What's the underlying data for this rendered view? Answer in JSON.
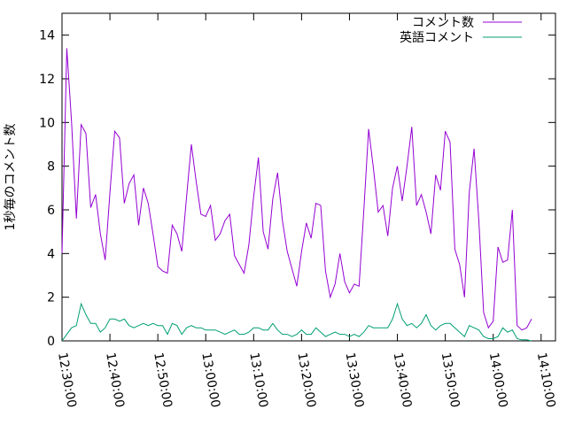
{
  "chart_data": {
    "type": "line",
    "ylabel": "1秒毎のコメント数",
    "x": [
      "12:30:00",
      "12:31:00",
      "12:32:00",
      "12:33:00",
      "12:34:00",
      "12:35:00",
      "12:36:00",
      "12:37:00",
      "12:38:00",
      "12:39:00",
      "12:40:00",
      "12:41:00",
      "12:42:00",
      "12:43:00",
      "12:44:00",
      "12:45:00",
      "12:46:00",
      "12:47:00",
      "12:48:00",
      "12:49:00",
      "12:50:00",
      "12:51:00",
      "12:52:00",
      "12:53:00",
      "12:54:00",
      "12:55:00",
      "12:56:00",
      "12:57:00",
      "12:58:00",
      "12:59:00",
      "13:00:00",
      "13:01:00",
      "13:02:00",
      "13:03:00",
      "13:04:00",
      "13:05:00",
      "13:06:00",
      "13:07:00",
      "13:08:00",
      "13:09:00",
      "13:10:00",
      "13:11:00",
      "13:12:00",
      "13:13:00",
      "13:14:00",
      "13:15:00",
      "13:16:00",
      "13:17:00",
      "13:18:00",
      "13:19:00",
      "13:20:00",
      "13:21:00",
      "13:22:00",
      "13:23:00",
      "13:24:00",
      "13:25:00",
      "13:26:00",
      "13:27:00",
      "13:28:00",
      "13:29:00",
      "13:30:00",
      "13:31:00",
      "13:32:00",
      "13:33:00",
      "13:34:00",
      "13:35:00",
      "13:36:00",
      "13:37:00",
      "13:38:00",
      "13:39:00",
      "13:40:00",
      "13:41:00",
      "13:42:00",
      "13:43:00",
      "13:44:00",
      "13:45:00",
      "13:46:00",
      "13:47:00",
      "13:48:00",
      "13:49:00",
      "13:50:00",
      "13:51:00",
      "13:52:00",
      "13:53:00",
      "13:54:00",
      "13:55:00",
      "13:56:00",
      "13:57:00",
      "13:58:00",
      "13:59:00",
      "14:00:00",
      "14:01:00",
      "14:02:00",
      "14:03:00",
      "14:04:00",
      "14:05:00",
      "14:06:00",
      "14:07:00",
      "14:08:00"
    ],
    "series": [
      {
        "name": "コメント数",
        "color": "#9400d3",
        "values": [
          4.0,
          13.4,
          10,
          5.6,
          9.9,
          9.5,
          6.1,
          6.7,
          4.9,
          3.7,
          6.8,
          9.6,
          9.3,
          6.3,
          7.2,
          7.6,
          5.3,
          7.0,
          6.3,
          4.9,
          3.4,
          3.2,
          3.1,
          5.3,
          4.9,
          4.1,
          6.6,
          9.0,
          7.3,
          5.8,
          5.7,
          6.2,
          4.6,
          4.9,
          5.5,
          5.8,
          3.9,
          3.5,
          3.1,
          4.4,
          6.6,
          8.4,
          5.0,
          4.2,
          6.5,
          7.7,
          5.5,
          4.1,
          3.3,
          2.5,
          4.1,
          5.4,
          4.7,
          6.3,
          6.2,
          3.2,
          2.0,
          2.6,
          4.0,
          2.7,
          2.2,
          2.6,
          2.5,
          6.0,
          9.7,
          7.9,
          5.9,
          6.2,
          4.8,
          7.0,
          8.0,
          6.4,
          8.0,
          9.8,
          6.2,
          6.7,
          5.9,
          4.9,
          7.6,
          6.9,
          9.6,
          9.1,
          4.2,
          3.5,
          2.0,
          6.8,
          8.8,
          5.5,
          1.3,
          0.6,
          0.9,
          4.3,
          3.6,
          3.7,
          6.0,
          0.7,
          0.5,
          0.6,
          1.0
        ]
      },
      {
        "name": "英語コメント",
        "color": "#009e73",
        "values": [
          0,
          0.3,
          0.6,
          0.7,
          1.7,
          1.2,
          0.8,
          0.8,
          0.4,
          0.6,
          1.0,
          1.0,
          0.9,
          1.0,
          0.7,
          0.6,
          0.7,
          0.8,
          0.7,
          0.8,
          0.7,
          0.7,
          0.3,
          0.8,
          0.7,
          0.3,
          0.6,
          0.7,
          0.6,
          0.6,
          0.5,
          0.5,
          0.5,
          0.4,
          0.3,
          0.4,
          0.5,
          0.3,
          0.3,
          0.4,
          0.6,
          0.6,
          0.5,
          0.5,
          0.8,
          0.5,
          0.3,
          0.3,
          0.2,
          0.3,
          0.5,
          0.3,
          0.3,
          0.6,
          0.4,
          0.2,
          0.3,
          0.4,
          0.3,
          0.3,
          0.2,
          0.3,
          0.2,
          0.4,
          0.7,
          0.6,
          0.6,
          0.6,
          0.6,
          1.0,
          1.7,
          1.0,
          0.7,
          0.8,
          0.6,
          0.8,
          1.2,
          0.7,
          0.5,
          0.7,
          0.8,
          0.8,
          0.6,
          0.4,
          0.2,
          0.7,
          0.6,
          0.5,
          0.2,
          0.1,
          0.1,
          0.2,
          0.6,
          0.4,
          0.5,
          0.1,
          0.05,
          0.05,
          0
        ]
      }
    ],
    "xlim": [
      "12:30:00",
      "14:13:00"
    ],
    "xticks": [
      "12:30:00",
      "12:40:00",
      "12:50:00",
      "13:00:00",
      "13:10:00",
      "13:20:00",
      "13:30:00",
      "13:40:00",
      "13:50:00",
      "14:00:00",
      "14:10:00"
    ],
    "ylim": [
      0,
      15
    ],
    "yticks": [
      0,
      2,
      4,
      6,
      8,
      10,
      12,
      14
    ],
    "legend": "upper right"
  }
}
